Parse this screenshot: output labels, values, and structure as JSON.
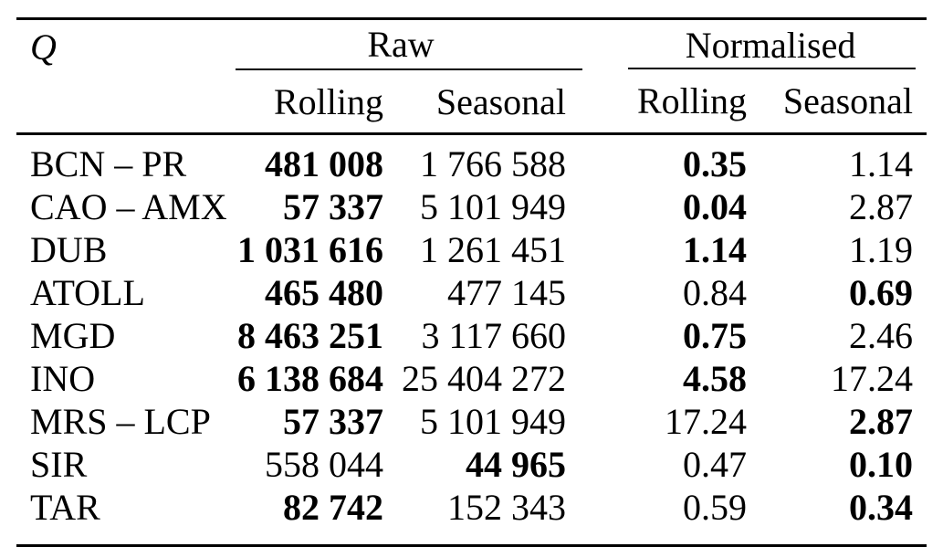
{
  "colors": {
    "text": "#000000",
    "rule": "#000000",
    "background": "#ffffff"
  },
  "table": {
    "corner_label": "Q",
    "groups": [
      {
        "label": "Raw",
        "columns": [
          "Rolling",
          "Seasonal"
        ]
      },
      {
        "label": "Normalised",
        "columns": [
          "Rolling",
          "Seasonal"
        ]
      }
    ],
    "rows": [
      {
        "q": "BCN – PR",
        "cells": [
          {
            "text": "481 008",
            "bold": true
          },
          {
            "text": "1 766 588",
            "bold": false
          },
          {
            "text": "0.35",
            "bold": true
          },
          {
            "text": "1.14",
            "bold": false
          }
        ]
      },
      {
        "q": "CAO – AMX",
        "cells": [
          {
            "text": "57 337",
            "bold": true
          },
          {
            "text": "5 101 949",
            "bold": false
          },
          {
            "text": "0.04",
            "bold": true
          },
          {
            "text": "2.87",
            "bold": false
          }
        ]
      },
      {
        "q": "DUB",
        "cells": [
          {
            "text": "1 031 616",
            "bold": true
          },
          {
            "text": "1 261 451",
            "bold": false
          },
          {
            "text": "1.14",
            "bold": true
          },
          {
            "text": "1.19",
            "bold": false
          }
        ]
      },
      {
        "q": "ATOLL",
        "cells": [
          {
            "text": "465 480",
            "bold": true
          },
          {
            "text": "477 145",
            "bold": false
          },
          {
            "text": "0.84",
            "bold": false
          },
          {
            "text": "0.69",
            "bold": true
          }
        ]
      },
      {
        "q": "MGD",
        "cells": [
          {
            "text": "8 463 251",
            "bold": true
          },
          {
            "text": "3 117 660",
            "bold": false
          },
          {
            "text": "0.75",
            "bold": true
          },
          {
            "text": "2.46",
            "bold": false
          }
        ]
      },
      {
        "q": "INO",
        "cells": [
          {
            "text": "6 138 684",
            "bold": true
          },
          {
            "text": "25 404 272",
            "bold": false
          },
          {
            "text": "4.58",
            "bold": true
          },
          {
            "text": "17.24",
            "bold": false
          }
        ]
      },
      {
        "q": "MRS – LCP",
        "cells": [
          {
            "text": "57 337",
            "bold": true
          },
          {
            "text": "5 101 949",
            "bold": false
          },
          {
            "text": "17.24",
            "bold": false
          },
          {
            "text": "2.87",
            "bold": true
          }
        ]
      },
      {
        "q": "SIR",
        "cells": [
          {
            "text": "558 044",
            "bold": false
          },
          {
            "text": "44 965",
            "bold": true
          },
          {
            "text": "0.47",
            "bold": false
          },
          {
            "text": "0.10",
            "bold": true
          }
        ]
      },
      {
        "q": "TAR",
        "cells": [
          {
            "text": "82 742",
            "bold": true
          },
          {
            "text": "152 343",
            "bold": false
          },
          {
            "text": "0.59",
            "bold": false
          },
          {
            "text": "0.34",
            "bold": true
          }
        ]
      }
    ]
  }
}
